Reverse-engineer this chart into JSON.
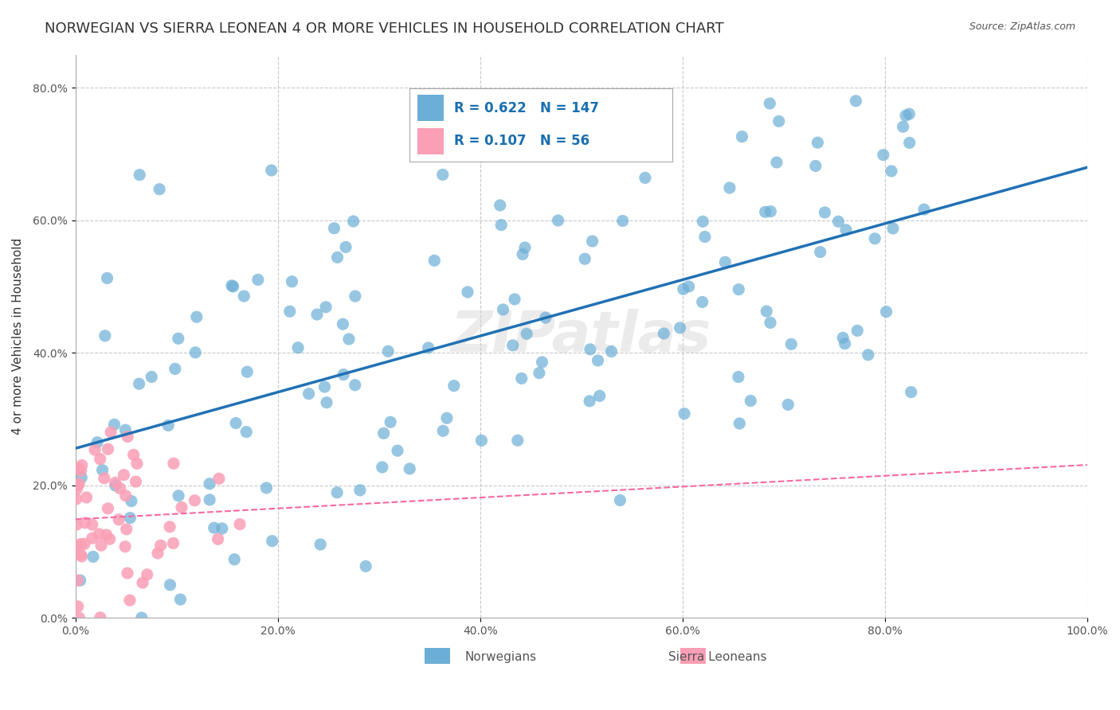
{
  "title": "NORWEGIAN VS SIERRA LEONEAN 4 OR MORE VEHICLES IN HOUSEHOLD CORRELATION CHART",
  "source": "Source: ZipAtlas.com",
  "ylabel": "4 or more Vehicles in Household",
  "xlabel": "",
  "xlim": [
    0.0,
    1.0
  ],
  "ylim": [
    0.0,
    0.85
  ],
  "xtick_labels": [
    "0.0%",
    "20.0%",
    "40.0%",
    "60.0%",
    "80.0%",
    "100.0%"
  ],
  "xtick_vals": [
    0.0,
    0.2,
    0.4,
    0.6,
    0.8,
    1.0
  ],
  "ytick_labels": [
    "0.0%",
    "20.0%",
    "40.0%",
    "60.0%",
    "80.0%"
  ],
  "ytick_vals": [
    0.0,
    0.2,
    0.4,
    0.6,
    0.8
  ],
  "norwegian_color": "#6baed6",
  "sierraleonean_color": "#fa9fb5",
  "norwegian_r": 0.622,
  "norwegian_n": 147,
  "sierraleonean_r": 0.107,
  "sierraleonean_n": 56,
  "regression_line_norwegian_color": "#2171b5",
  "regression_line_sl_color": "#f768a1",
  "watermark": "ZIPatlas",
  "background_color": "#ffffff",
  "grid_color": "#c8c8c8",
  "title_fontsize": 13,
  "label_fontsize": 11,
  "tick_fontsize": 10,
  "legend_fontsize": 12
}
